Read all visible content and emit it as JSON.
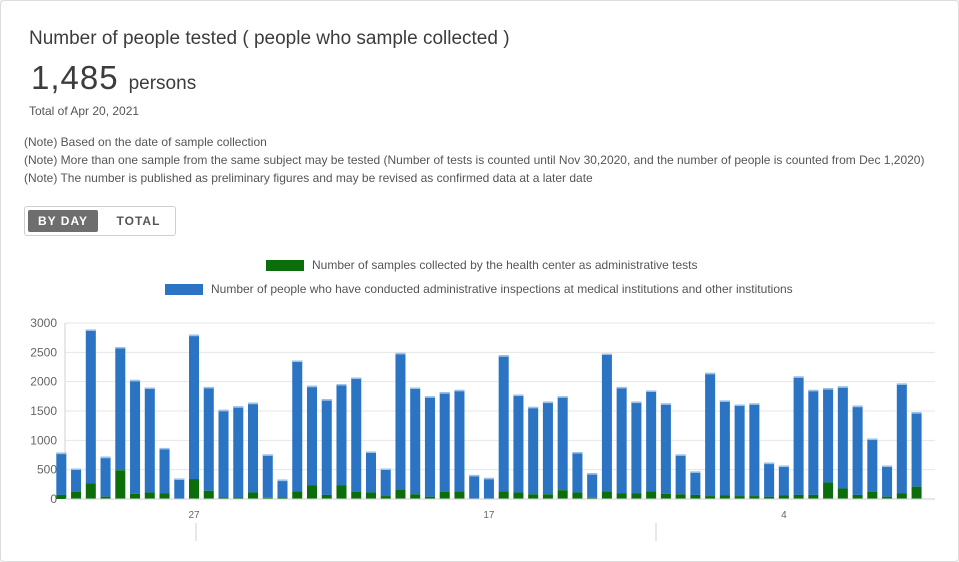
{
  "header": {
    "title": "Number of people tested ( people who sample collected )",
    "total_value": "1,485",
    "total_unit": "persons",
    "total_date": "Total of Apr 20, 2021"
  },
  "notes": [
    "(Note) Based on the date of sample collection",
    "(Note) More than one sample from the same subject may be tested (Number of tests is counted until Nov 30,2020, and the number of people is counted from Dec 1,2020)",
    "(Note) The number is published as preliminary figures and may be revised as confirmed data at a later date"
  ],
  "toggle": {
    "by_day": "BY DAY",
    "total": "TOTAL",
    "selected": "BY DAY"
  },
  "colors": {
    "health_center": "#0b6e0b",
    "medical": "#2a74c3",
    "grid": "#e6e6e6",
    "axis_text": "#666666"
  },
  "chart_data": {
    "type": "bar",
    "stacked": true,
    "ylim": [
      0,
      3000
    ],
    "yticks": [
      0,
      500,
      1000,
      1500,
      2000,
      2500,
      3000
    ],
    "xtick_labels": [
      {
        "index": 9,
        "label": "27"
      },
      {
        "index": 29,
        "label": "17"
      },
      {
        "index": 49,
        "label": "4"
      }
    ],
    "series": [
      {
        "name": "Number of samples collected by the health center as administrative tests",
        "values": [
          70,
          120,
          270,
          40,
          490,
          90,
          110,
          100,
          0,
          340,
          140,
          30,
          30,
          110,
          20,
          30,
          130,
          230,
          70,
          230,
          120,
          110,
          50,
          160,
          80,
          40,
          120,
          130,
          0,
          0,
          130,
          110,
          80,
          80,
          150,
          110,
          20,
          130,
          100,
          100,
          130,
          90,
          80,
          70,
          50,
          60,
          50,
          50,
          40,
          60,
          70,
          70,
          280,
          180,
          70,
          120,
          40,
          100,
          210
        ]
      },
      {
        "name": "Number of people who have conducted administrative inspections at medical institutions and other institutions",
        "values": [
          720,
          400,
          2620,
          680,
          2100,
          1940,
          1790,
          770,
          350,
          2460,
          1770,
          1490,
          1550,
          1530,
          740,
          300,
          2230,
          1700,
          1630,
          1730,
          1950,
          700,
          470,
          2330,
          1820,
          1710,
          1700,
          1730,
          410,
          360,
          2320,
          1670,
          1490,
          1580,
          1600,
          690,
          420,
          2350,
          1810,
          1560,
          1720,
          1540,
          680,
          400,
          2100,
          1620,
          1560,
          1580,
          580,
          510,
          2020,
          1790,
          1610,
          1740,
          1520,
          910,
          530,
          1870,
          1270
        ]
      }
    ]
  }
}
